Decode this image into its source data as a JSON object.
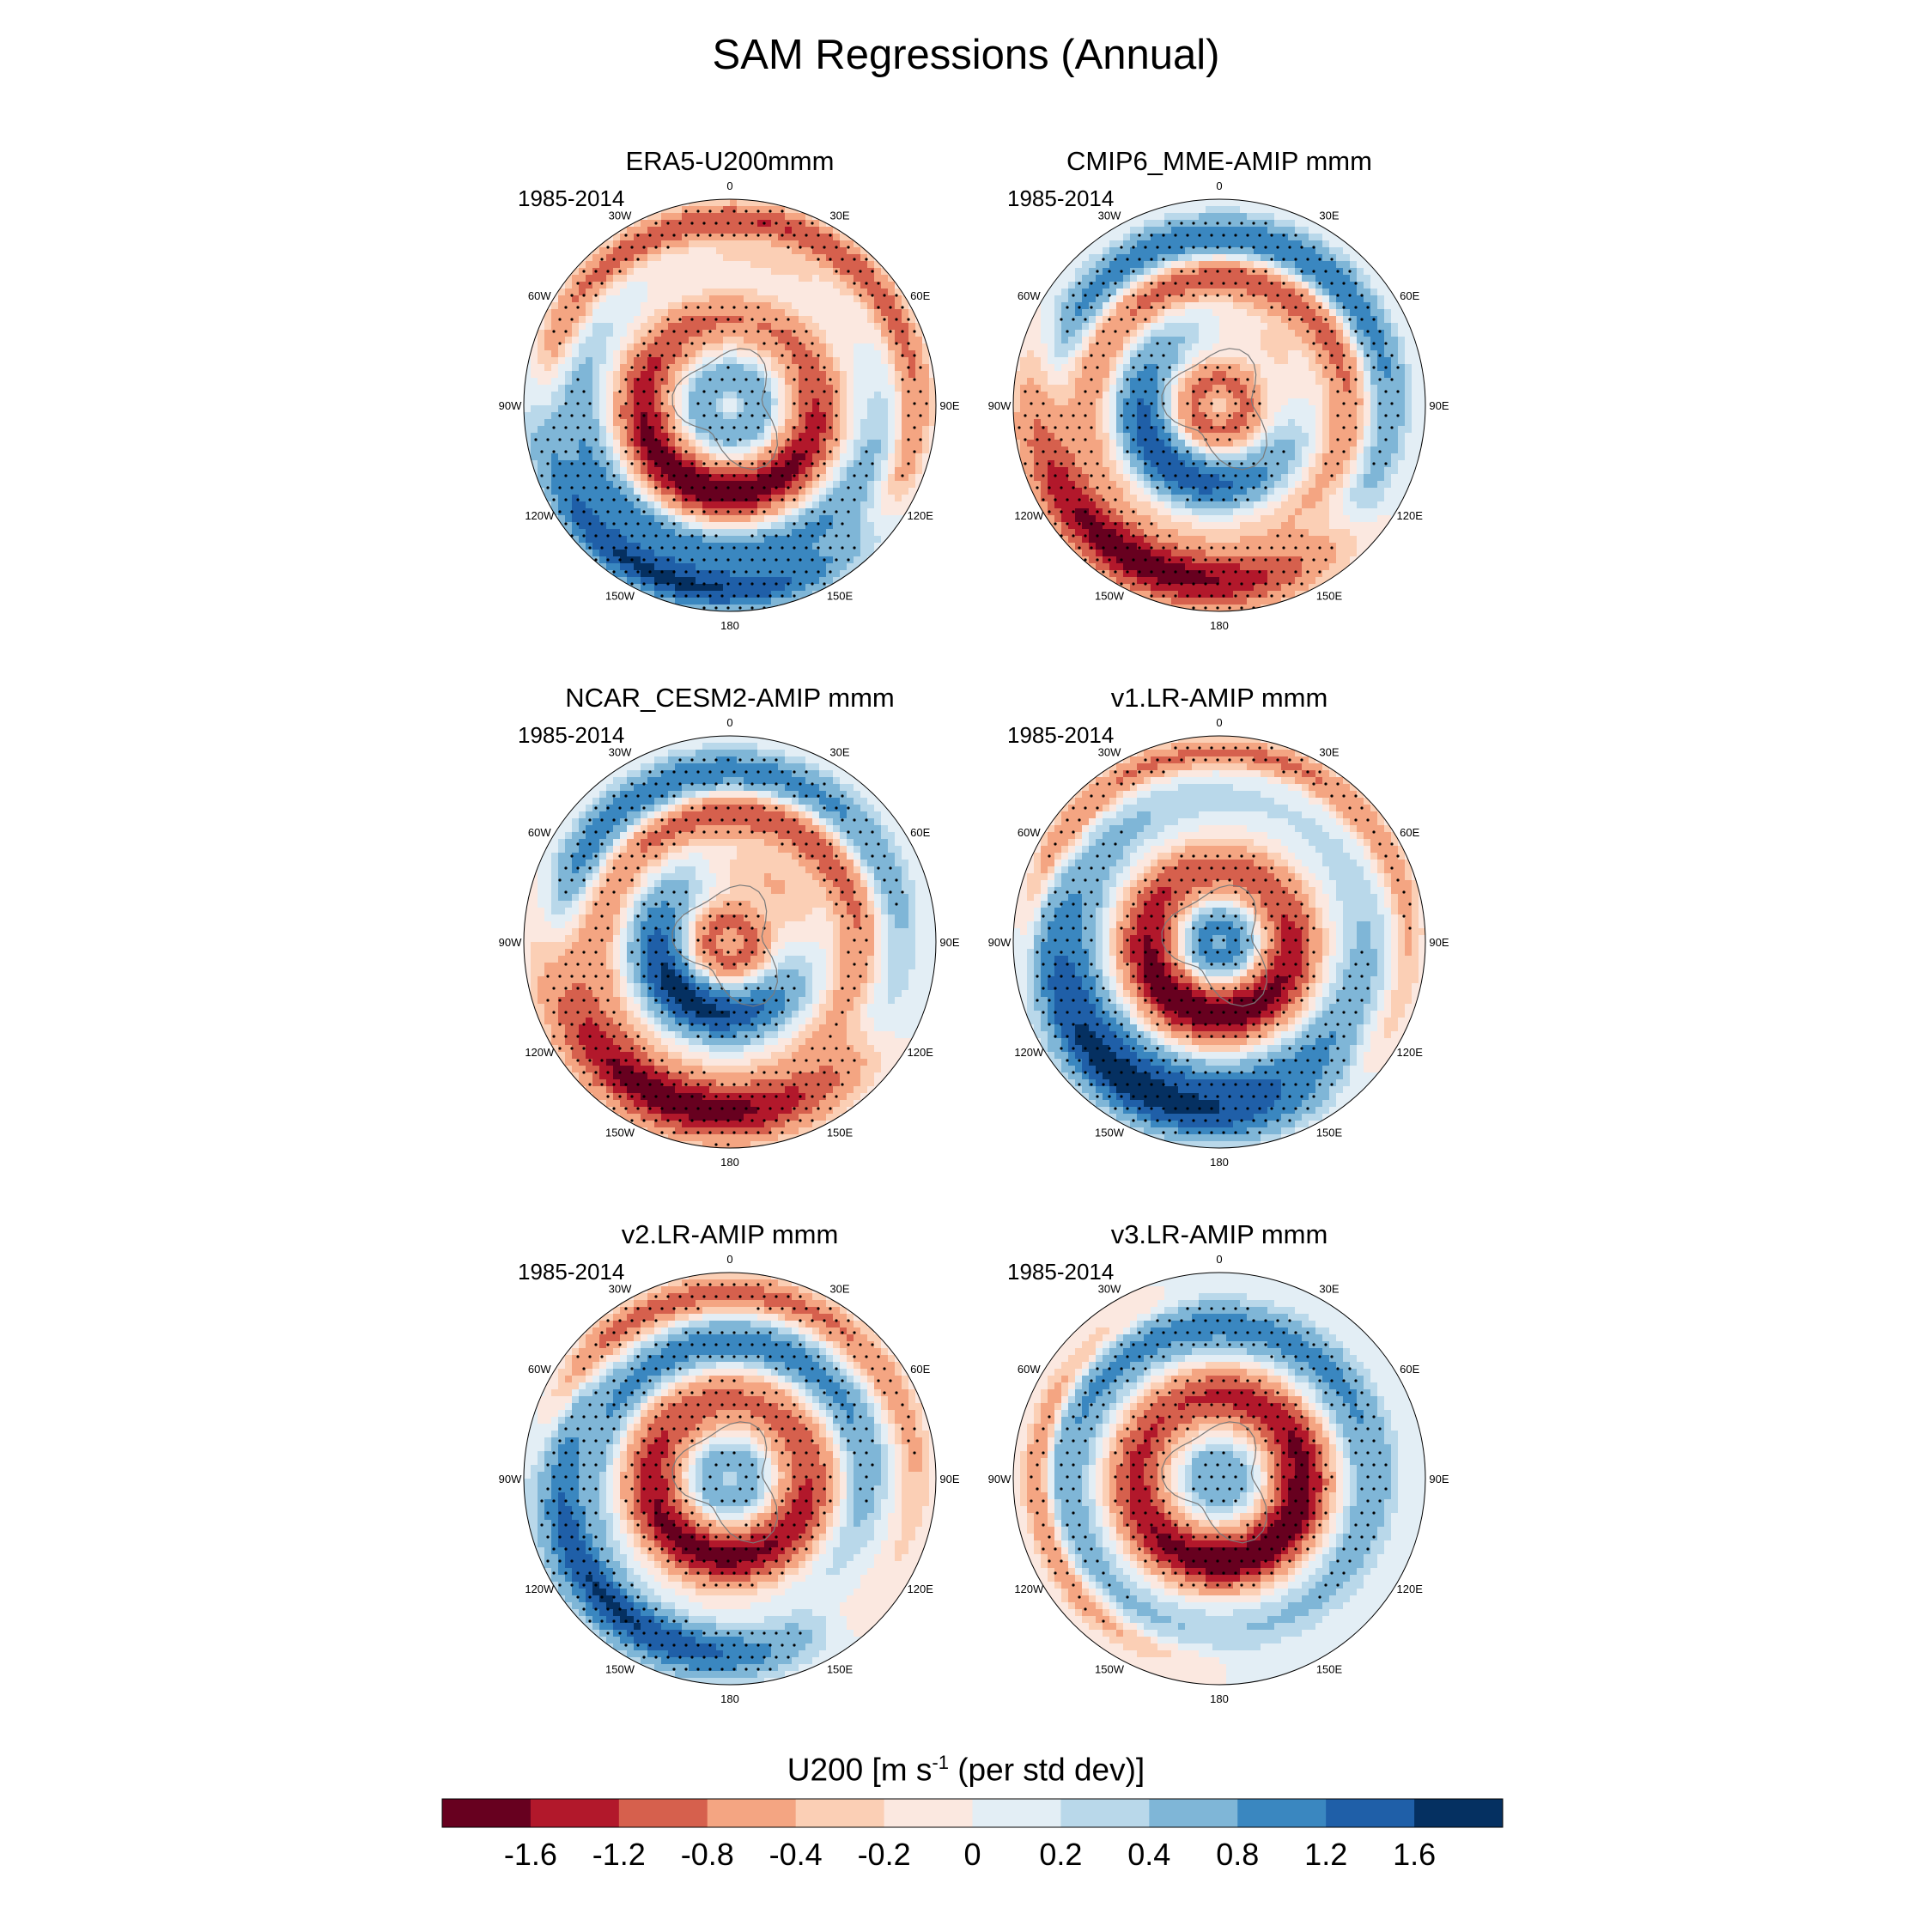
{
  "title": "SAM Regressions (Annual)",
  "panels": [
    {
      "title": "ERA5-U200mmm",
      "period": "1985-2014",
      "pattern": "era5"
    },
    {
      "title": "CMIP6_MME-AMIP  mmm",
      "period": "1985-2014",
      "pattern": "cmip6"
    },
    {
      "title": "NCAR_CESM2-AMIP  mmm",
      "period": "1985-2014",
      "pattern": "cesm2"
    },
    {
      "title": "v1.LR-AMIP  mmm",
      "period": "1985-2014",
      "pattern": "v1"
    },
    {
      "title": "v2.LR-AMIP  mmm",
      "period": "1985-2014",
      "pattern": "v2"
    },
    {
      "title": "v3.LR-AMIP  mmm",
      "period": "1985-2014",
      "pattern": "v3"
    }
  ],
  "longitude_labels": [
    "0",
    "30E",
    "60E",
    "90E",
    "120E",
    "150E",
    "180",
    "150W",
    "120W",
    "90W",
    "60W",
    "30W"
  ],
  "colorbar": {
    "title_main": "U200 [m s",
    "title_sup": "-1",
    "title_end": " (per std dev)]",
    "ticks": [
      "-1.6",
      "-1.2",
      "-0.8",
      "-0.4",
      "-0.2",
      "0",
      "0.2",
      "0.4",
      "0.8",
      "1.2",
      "1.6"
    ],
    "colors": [
      "#67001f",
      "#b2182b",
      "#d6604d",
      "#f4a582",
      "#fbcfb5",
      "#fbe8e0",
      "#e3eef5",
      "#b9d8ea",
      "#7fb6d7",
      "#3a87c0",
      "#1f5fa8",
      "#053061"
    ]
  },
  "chart_data": {
    "type": "heatmap",
    "projection": "south polar stereographic",
    "variable": "U200 regression onto SAM index",
    "units": "m s-1 (per std dev)",
    "levels": [
      -1.6,
      -1.2,
      -0.8,
      -0.4,
      -0.2,
      0,
      0.2,
      0.4,
      0.8,
      1.2,
      1.6
    ],
    "stippling": "statistically significant regions",
    "panels": [
      "ERA5-U200mmm",
      "CMIP6_MME-AMIP  mmm",
      "NCAR_CESM2-AMIP  mmm",
      "v1.LR-AMIP  mmm",
      "v2.LR-AMIP  mmm",
      "v3.LR-AMIP  mmm"
    ],
    "period": "1985-2014"
  }
}
